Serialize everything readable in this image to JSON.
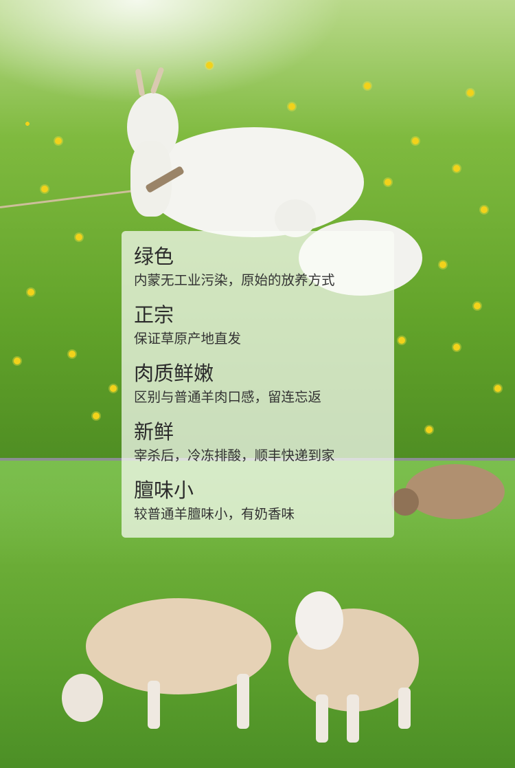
{
  "features": [
    {
      "title": "绿色",
      "desc": "内蒙无工业污染，原始的放养方式"
    },
    {
      "title": "正宗",
      "desc": "保证草原产地直发"
    },
    {
      "title": "肉质鲜嫩",
      "desc": "区别与普通羊肉口感，留连忘返"
    },
    {
      "title": "新鲜",
      "desc": "宰杀后，冷冻排酸，顺丰快递到家"
    },
    {
      "title": "膻味小",
      "desc": "较普通羊膻味小，有奶香味"
    }
  ],
  "colors": {
    "grass": "#62a32a",
    "flower": "#f2d21b",
    "panel": "#fafcf6",
    "text": "#2b2b2b"
  }
}
